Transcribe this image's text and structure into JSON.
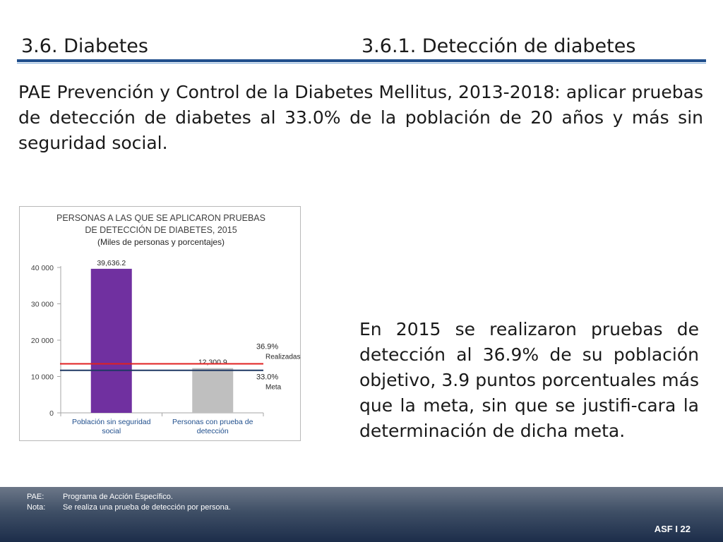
{
  "header": {
    "section_title": "3.6. Diabetes",
    "subsection_title": "3.6.1. Detección de diabetes"
  },
  "intro_text": "PAE Prevención y Control de la Diabetes Mellitus, 2013-2018: aplicar pruebas de detección de diabetes al 33.0% de la población de 20 años y más sin seguridad social.",
  "summary_text": "En 2015 se realizaron pruebas de detección al 36.9% de su población objetivo, 3.9 puntos porcentuales más que la meta, sin que se justifi-cara la determinación de dicha meta.",
  "chart_data": {
    "type": "bar",
    "title": "PERSONAS A LAS QUE SE APLICARON PRUEBAS",
    "title_line2": "DE DETECCIÓN DE DIABETES, 2015",
    "subtitle": "(Miles de personas y porcentajes)",
    "categories": [
      {
        "line1": "Población sin seguridad",
        "line2": "social"
      },
      {
        "line1": "Personas con prueba de",
        "line2": "detección"
      }
    ],
    "values": [
      39636.2,
      12300.9
    ],
    "value_labels": [
      "39,636.2",
      "12,300.9"
    ],
    "bar_colors": [
      "#7030a0",
      "#bfbfbf"
    ],
    "ylim": [
      0,
      40000
    ],
    "yticks": [
      0,
      10000,
      20000,
      30000,
      40000
    ],
    "ytick_labels": [
      "0",
      "10 000",
      "20 000",
      "30 000",
      "40 000"
    ],
    "reference_lines": [
      {
        "value": 13500,
        "color": "#e02020",
        "label_pct": "36.9%",
        "label_text": "Realizadas"
      },
      {
        "value": 11700,
        "color": "#1f3864",
        "label_pct": "33.0%",
        "label_text": "Meta"
      }
    ],
    "grid": false,
    "legend": "none"
  },
  "footer": {
    "notes": [
      {
        "key": "PAE:",
        "text": "Programa de Acción Específico."
      },
      {
        "key": "Nota:",
        "text": "Se realiza una prueba de detección por persona."
      }
    ],
    "page_number": "ASF I 22"
  }
}
